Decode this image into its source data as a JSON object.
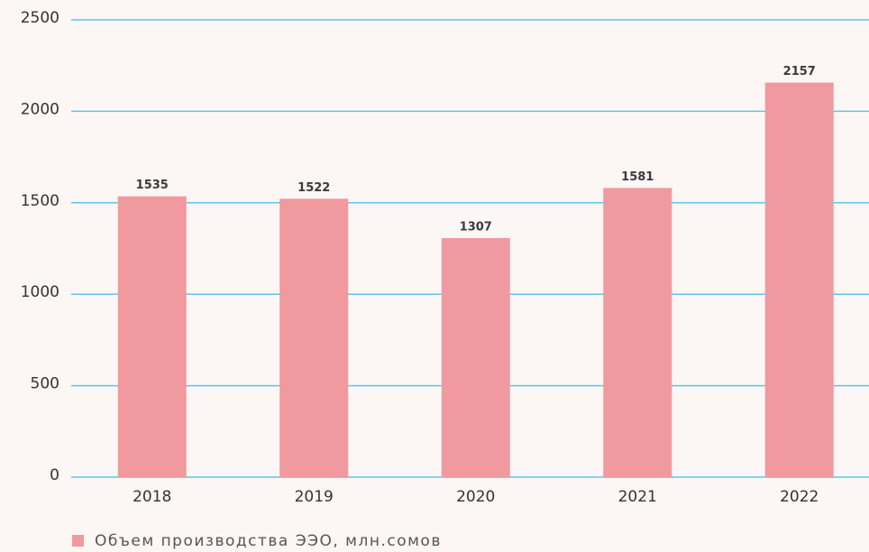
{
  "chart_data": {
    "type": "bar",
    "categories": [
      "2018",
      "2019",
      "2020",
      "2021",
      "2022"
    ],
    "series": [
      {
        "name": "Объем производства ЭЭО, млн.сомов",
        "color": "#f0999f",
        "values": [
          1535,
          1522,
          1307,
          1581,
          2157
        ]
      }
    ],
    "ylim": [
      0,
      2500
    ],
    "yticks": [
      0,
      500,
      1000,
      1500,
      2000,
      2500
    ],
    "grid": true,
    "grid_color": "#5bc6e6",
    "legend": "bottom-left"
  }
}
